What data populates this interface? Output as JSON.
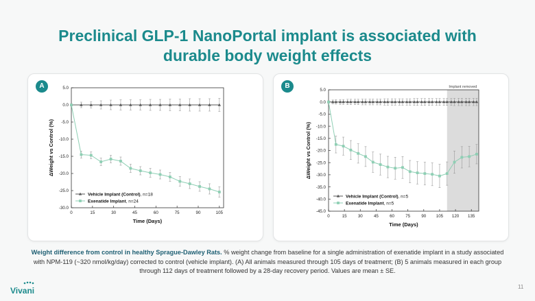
{
  "page": {
    "title_line1": "Preclinical GLP-1 NanoPortal implant is associated with",
    "title_line2": "durable body weight effects",
    "caption_bold": "Weight difference from control in healthy Sprague-Dawley Rats.",
    "caption_text": " % weight change from baseline for a single administration of exenatide implant in a study associated with NPM-119 (~320 nmol/kg/day) corrected to control (vehicle implant). (A) All animals measured through 105 days of treatment; (B) 5 animals measured in each group through 112 days of treatment followed by a 28-day recovery period. Values are mean ± SE.",
    "logo_text": "Vivani",
    "page_number": "11",
    "colors": {
      "accent": "#1b8a8c",
      "exenatide": "#8ecfb4",
      "vehicle": "#555555"
    }
  },
  "chart_data": [
    {
      "id": "A",
      "type": "line",
      "panel_label": "A",
      "xlabel": "Time (Days)",
      "ylabel": "ΔWeight vs Control (%)",
      "xlim": [
        0,
        108
      ],
      "ylim": [
        -30,
        5
      ],
      "xticks": [
        0,
        15,
        30,
        45,
        60,
        75,
        90,
        105
      ],
      "yticks": [
        5,
        0,
        -5,
        -10,
        -15,
        -20,
        -25,
        -30
      ],
      "ytick_labels": [
        "5.0",
        "0.0",
        "-5.0",
        "-10.0",
        "-15.0",
        "-20.0",
        "-25.0",
        "-30.0"
      ],
      "legend_position": "bottom-left",
      "series": [
        {
          "name": "Vehicle Implant (Control)",
          "n_label": ", n=18",
          "marker": "triangle",
          "x": [
            0,
            7,
            14,
            21,
            28,
            35,
            42,
            49,
            56,
            63,
            70,
            77,
            84,
            91,
            98,
            105
          ],
          "y": [
            0,
            0,
            0,
            0,
            0,
            0,
            0,
            0,
            0,
            0,
            0,
            0,
            0,
            0,
            0,
            0
          ],
          "err": [
            0.3,
            0.8,
            0.9,
            1.2,
            1.4,
            1.5,
            1.5,
            1.5,
            1.6,
            1.6,
            1.7,
            1.7,
            1.8,
            1.8,
            1.8,
            1.9
          ]
        },
        {
          "name": "Exenatide Implant",
          "n_label": ", n=24",
          "marker": "square",
          "x": [
            0,
            7,
            14,
            21,
            28,
            35,
            42,
            49,
            56,
            63,
            70,
            77,
            84,
            91,
            98,
            105
          ],
          "y": [
            0,
            -14.5,
            -14.7,
            -16.6,
            -15.8,
            -16.4,
            -18.5,
            -19.2,
            -19.8,
            -20.3,
            -21.0,
            -22.3,
            -23.0,
            -23.8,
            -24.5,
            -25.4
          ],
          "err": [
            0.3,
            1.0,
            1.0,
            1.1,
            1.1,
            1.2,
            1.2,
            1.2,
            1.3,
            1.3,
            1.3,
            1.4,
            1.4,
            1.4,
            1.5,
            1.5
          ]
        }
      ]
    },
    {
      "id": "B",
      "type": "line",
      "panel_label": "B",
      "xlabel": "Time (Days)",
      "ylabel": "ΔWeight vs Control (%)",
      "xlim": [
        0,
        142
      ],
      "ylim": [
        -45,
        5
      ],
      "xticks": [
        0,
        15,
        30,
        45,
        60,
        75,
        90,
        105,
        120,
        135
      ],
      "yticks": [
        5,
        0,
        -5,
        -10,
        -15,
        -20,
        -25,
        -30,
        -35,
        -40,
        -45
      ],
      "ytick_labels": [
        "5.0",
        "0.0",
        "-5.0",
        "-10.0",
        "-15.0",
        "-20.0",
        "-25.0",
        "-30.0",
        "-35.0",
        "-40.0",
        "-45.0"
      ],
      "shaded_region": [
        112,
        142
      ],
      "annotation": "Implant removed",
      "legend_position": "bottom-left",
      "series": [
        {
          "name": "Vehicle Implant (Control)",
          "n_label": ", n=5",
          "marker": "triangle",
          "x": [
            0,
            4,
            7,
            11,
            14,
            18,
            21,
            25,
            28,
            32,
            35,
            39,
            42,
            46,
            49,
            53,
            56,
            60,
            63,
            67,
            70,
            74,
            77,
            81,
            84,
            88,
            91,
            95,
            98,
            102,
            105,
            109,
            112,
            116,
            119,
            123,
            126,
            130,
            133,
            137,
            140
          ],
          "y": [
            0,
            0,
            0,
            0,
            0,
            0,
            0,
            0,
            0,
            0,
            0,
            0,
            0,
            0,
            0,
            0,
            0,
            0,
            0,
            0,
            0,
            0,
            0,
            0,
            0,
            0,
            0,
            0,
            0,
            0,
            0,
            0,
            0,
            0,
            0,
            0,
            0,
            0,
            0,
            0,
            0
          ],
          "err": [
            0.3,
            0.8,
            0.9,
            1.0,
            1.0,
            1.1,
            1.1,
            1.1,
            1.1,
            1.2,
            1.2,
            1.2,
            1.2,
            1.2,
            1.2,
            1.3,
            1.3,
            1.3,
            1.3,
            1.3,
            1.3,
            1.3,
            1.3,
            1.4,
            1.4,
            1.4,
            1.4,
            1.4,
            1.4,
            1.4,
            1.4,
            1.4,
            1.4,
            1.4,
            1.5,
            1.5,
            1.5,
            1.5,
            1.5,
            1.5,
            1.5
          ]
        },
        {
          "name": "Exenatide Implant",
          "n_label": ", n=5",
          "marker": "square",
          "x": [
            0,
            7,
            14,
            21,
            28,
            35,
            42,
            49,
            56,
            63,
            70,
            77,
            84,
            91,
            98,
            105,
            112,
            119,
            126,
            133,
            140
          ],
          "y": [
            0,
            -17.5,
            -18.2,
            -19.8,
            -21.2,
            -22.5,
            -24.8,
            -25.8,
            -26.8,
            -27.3,
            -27.0,
            -28.7,
            -29.2,
            -29.5,
            -29.8,
            -30.5,
            -29.5,
            -24.8,
            -22.8,
            -22.5,
            -21.5
          ],
          "err": [
            0.5,
            3.5,
            3.7,
            3.9,
            4.0,
            4.1,
            4.2,
            4.3,
            4.4,
            4.5,
            4.5,
            4.6,
            4.6,
            4.7,
            4.7,
            4.8,
            4.8,
            4.6,
            4.4,
            4.2,
            4.0
          ]
        }
      ]
    }
  ]
}
